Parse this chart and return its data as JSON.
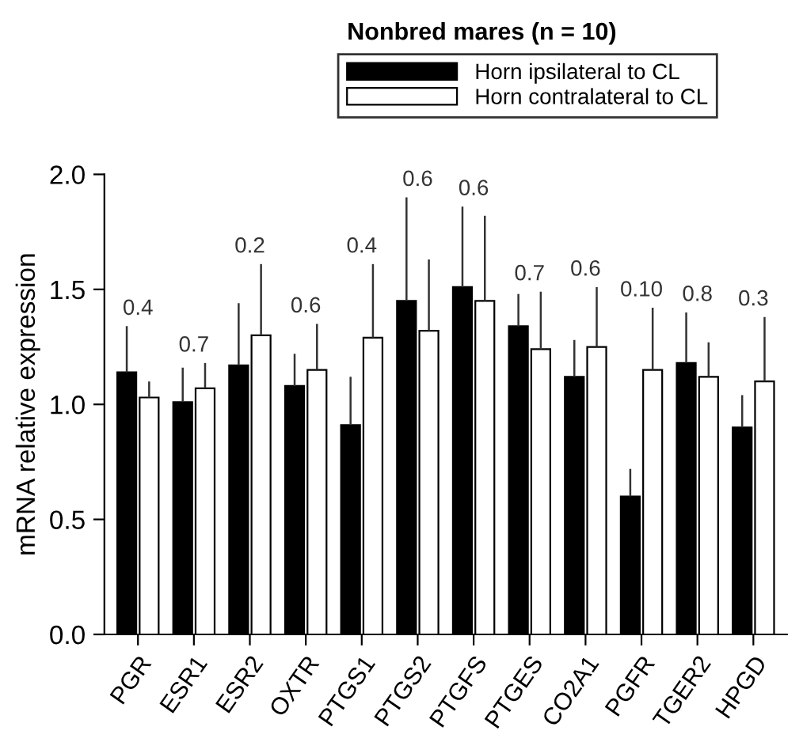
{
  "chart_data": {
    "type": "bar",
    "title": "Nonbred mares (n = 10)",
    "ylabel": "mRNA relative expression",
    "categories": [
      "PGR",
      "ESR1",
      "ESR2",
      "OXTR",
      "PTGS1",
      "PTGS2",
      "PTGFS",
      "PTGES",
      "CO2A1",
      "PGFR",
      "TGER2",
      "HPGD"
    ],
    "series": [
      {
        "name": "Horn ipsilateral to CL",
        "color": "#000000",
        "values": [
          1.14,
          1.01,
          1.17,
          1.08,
          0.91,
          1.45,
          1.51,
          1.34,
          1.12,
          0.6,
          1.18,
          0.9
        ],
        "errors": [
          [
            1.14,
            1.34
          ],
          [
            1.01,
            1.16
          ],
          [
            1.17,
            1.44
          ],
          [
            1.08,
            1.22
          ],
          [
            0.91,
            1.12
          ],
          [
            1.45,
            1.9
          ],
          [
            1.51,
            1.86
          ],
          [
            1.34,
            1.48
          ],
          [
            1.12,
            1.28
          ],
          [
            0.6,
            0.72
          ],
          [
            1.18,
            1.4
          ],
          [
            0.9,
            1.04
          ]
        ]
      },
      {
        "name": "Horn contralateral to CL",
        "color": "#ffffff",
        "values": [
          1.03,
          1.07,
          1.3,
          1.15,
          1.29,
          1.32,
          1.45,
          1.24,
          1.25,
          1.15,
          1.12,
          1.1
        ],
        "errors": [
          [
            1.03,
            1.1
          ],
          [
            1.07,
            1.18
          ],
          [
            1.3,
            1.61
          ],
          [
            1.15,
            1.35
          ],
          [
            1.29,
            1.61
          ],
          [
            1.32,
            1.63
          ],
          [
            1.45,
            1.82
          ],
          [
            1.24,
            1.49
          ],
          [
            1.25,
            1.51
          ],
          [
            1.15,
            1.42
          ],
          [
            1.12,
            1.27
          ],
          [
            1.1,
            1.38
          ]
        ]
      }
    ],
    "ylim": [
      0,
      2.0
    ],
    "yticks": [
      {
        "value": 0,
        "label": "0.0"
      },
      0.5,
      {
        "value": 1,
        "label": "1.0"
      },
      1.5,
      {
        "value": 2,
        "label": "2.0"
      }
    ],
    "legend": "top",
    "grid": false,
    "annotations": [
      "0.4",
      "0.7",
      "0.2",
      "0.6",
      "0.4",
      "0.6",
      "0.6",
      "0.7",
      "0.6",
      "0.10",
      "0.8",
      "0.3"
    ]
  }
}
